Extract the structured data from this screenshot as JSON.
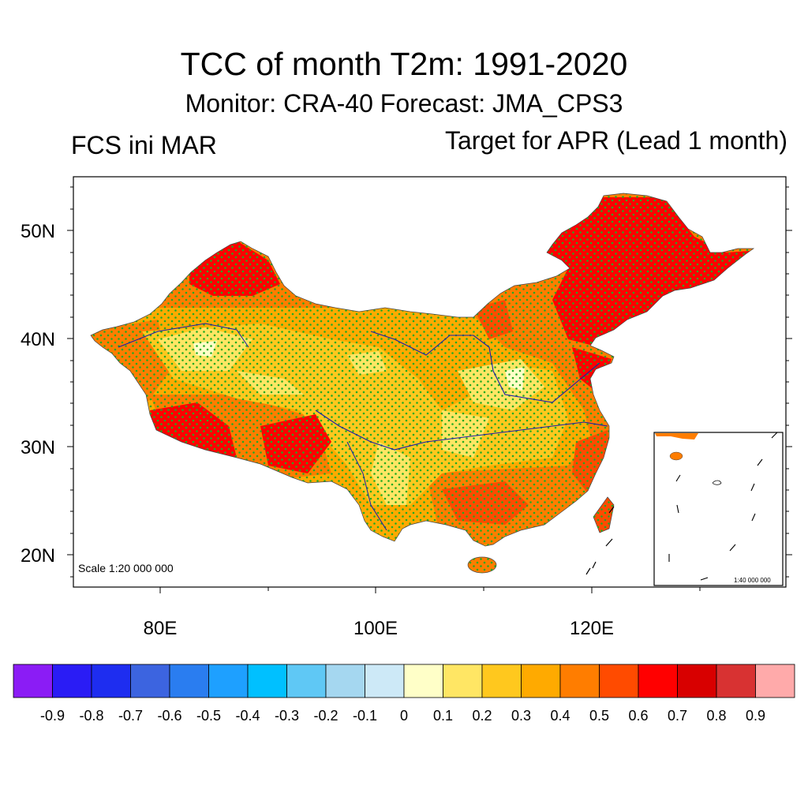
{
  "title": "TCC of month T2m: 1991-2020",
  "subtitle": "Monitor: CRA-40   Forecast: JMA_CPS3",
  "left_label": "FCS ini MAR",
  "right_label": "Target for APR (Lead 1 month)",
  "map": {
    "lat_labels": [
      "50N",
      "40N",
      "30N",
      "20N"
    ],
    "lon_labels": [
      "80E",
      "100E",
      "120E"
    ],
    "scale_label": "Scale 1:20 000 000",
    "inset_scale_label": "1:40 000 000"
  },
  "colorbar": {
    "colors": [
      "#8b1cf5",
      "#2a1cf5",
      "#1e2df0",
      "#3c64e0",
      "#2a7df0",
      "#1ea0ff",
      "#00c0ff",
      "#5fc8f5",
      "#a5d7f0",
      "#cde9f7",
      "#ffffc8",
      "#ffe664",
      "#ffc81e",
      "#ffaa00",
      "#ff7d00",
      "#ff4b00",
      "#ff0000",
      "#d80000",
      "#d83232",
      "#ffaaaa"
    ],
    "tick_labels": [
      "-0.9",
      "-0.8",
      "-0.7",
      "-0.6",
      "-0.5",
      "-0.4",
      "-0.3",
      "-0.2",
      "-0.1",
      "0",
      "0.1",
      "0.2",
      "0.3",
      "0.4",
      "0.5",
      "0.6",
      "0.7",
      "0.8",
      "0.9"
    ]
  }
}
